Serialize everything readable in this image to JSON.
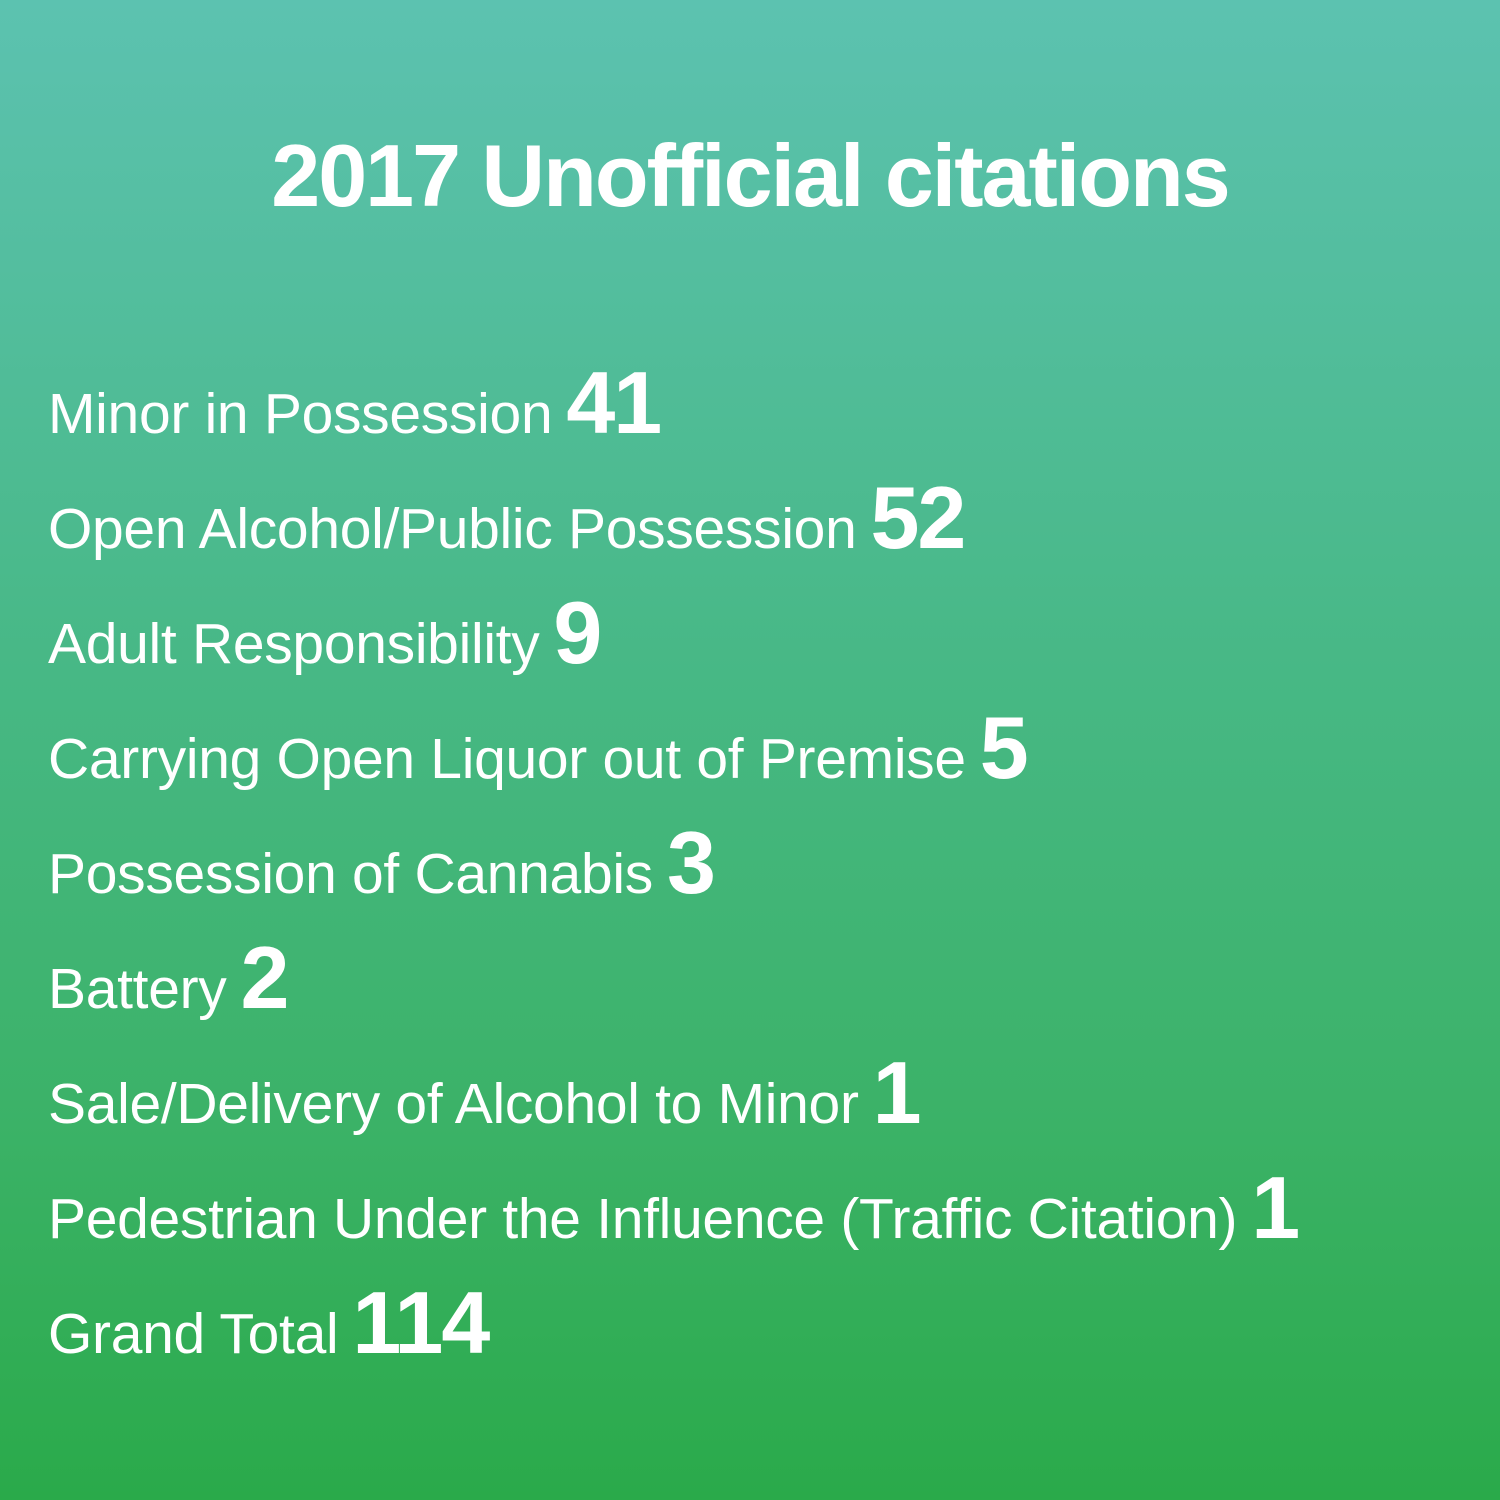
{
  "title": "2017 Unofficial citations",
  "colors": {
    "gradient_top": "#5cc2b0",
    "gradient_bottom": "#2aaa4a",
    "text": "#ffffff"
  },
  "items": [
    {
      "label": "Minor in Possession",
      "value": "41"
    },
    {
      "label": "Open Alcohol/Public Possession",
      "value": "52"
    },
    {
      "label": "Adult Responsibility",
      "value": "9"
    },
    {
      "label": "Carrying Open Liquor out of Premise",
      "value": "5"
    },
    {
      "label": "Possession of Cannabis",
      "value": "3"
    },
    {
      "label": "Battery",
      "value": "2"
    },
    {
      "label": "Sale/Delivery of Alcohol to Minor",
      "value": "1"
    },
    {
      "label": "Pedestrian Under the Influence (Traffic Citation)",
      "value": "1"
    },
    {
      "label": "Grand Total",
      "value": "114"
    }
  ]
}
